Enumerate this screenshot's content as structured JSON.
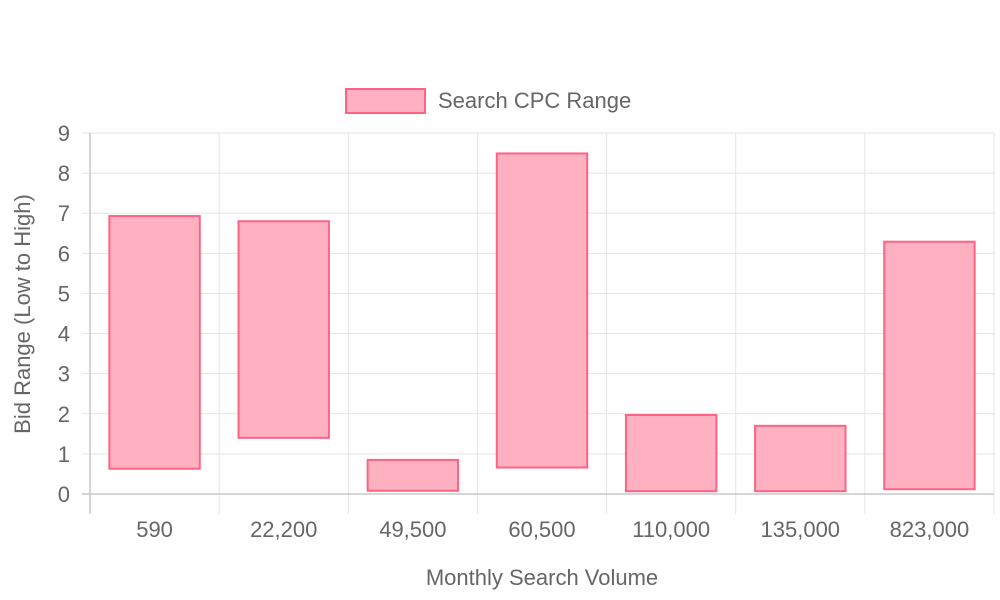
{
  "chart_data": {
    "type": "bar",
    "subtype": "floating-range",
    "categories": [
      "590",
      "22,200",
      "49,500",
      "60,500",
      "110,000",
      "135,000",
      "823,000"
    ],
    "series": [
      {
        "name": "Search CPC Range",
        "ranges": [
          [
            0.63,
            6.93
          ],
          [
            1.4,
            6.8
          ],
          [
            0.08,
            0.85
          ],
          [
            0.66,
            8.49
          ],
          [
            0.07,
            1.97
          ],
          [
            0.07,
            1.7
          ],
          [
            0.12,
            6.29
          ]
        ]
      }
    ],
    "xlabel": "Monthly Search Volume",
    "ylabel": "Bid Range (Low to High)",
    "ylim": [
      0,
      9
    ],
    "yticks": [
      "0",
      "1",
      "2",
      "3",
      "4",
      "5",
      "6",
      "7",
      "8",
      "9"
    ],
    "grid": true,
    "legend_position": "top-center",
    "colors": {
      "fill": "#ffb1c1",
      "border": "#ff6384",
      "grid": "#e5e5e5",
      "axis": "#c8c8c8",
      "text": "#666666"
    }
  }
}
